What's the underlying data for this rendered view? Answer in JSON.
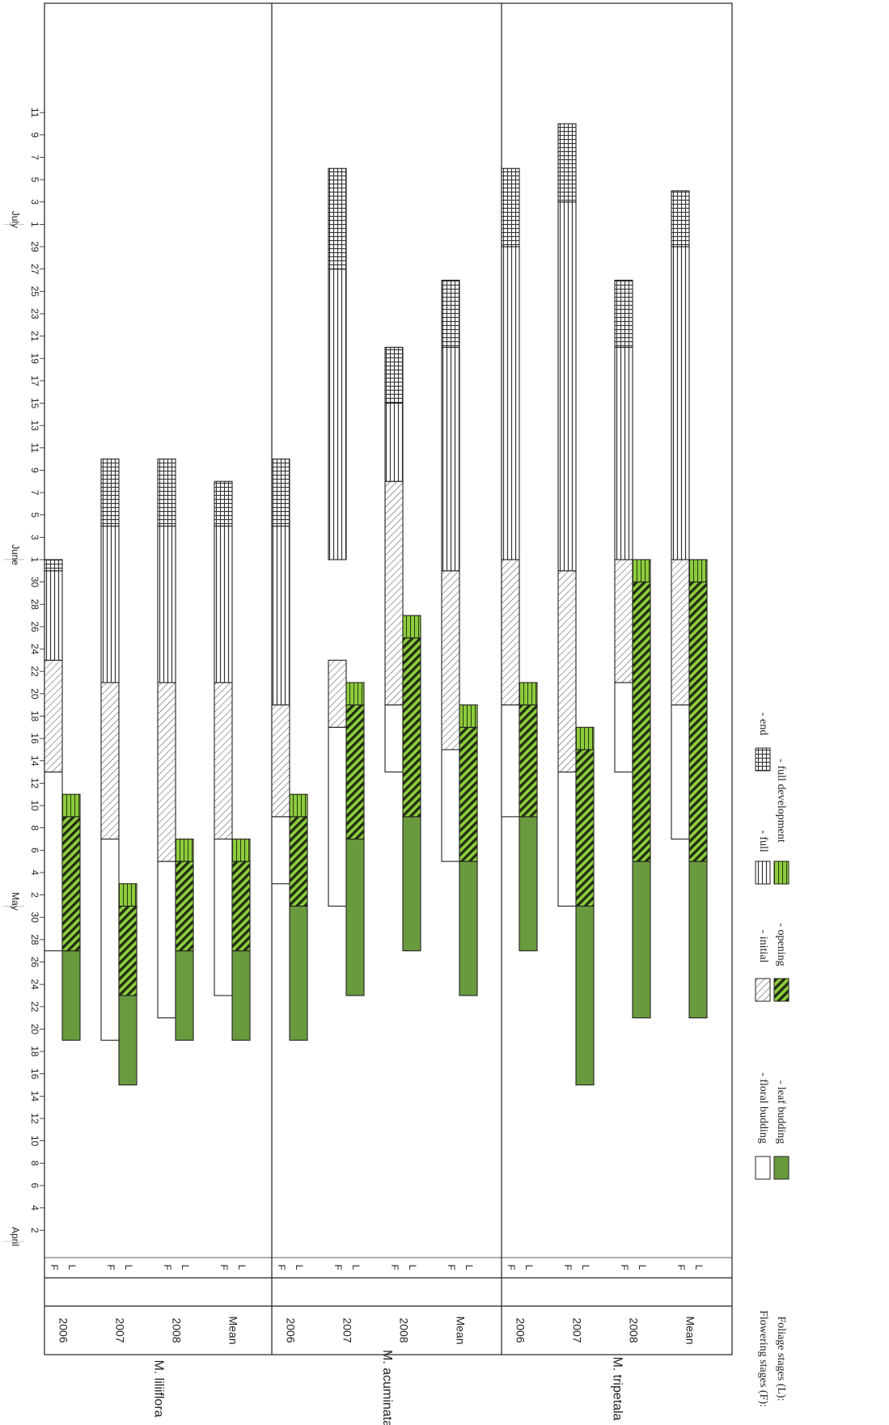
{
  "chart_data": {
    "type": "gantt",
    "orientation": "rotated-90-cw",
    "date_axis": {
      "months": [
        {
          "name": "April",
          "start": "04-01"
        },
        {
          "name": "May",
          "start": "05-01"
        },
        {
          "name": "June",
          "start": "06-01"
        },
        {
          "name": "July",
          "start": "07-01"
        }
      ],
      "ticks": [
        {
          "date": "04-02",
          "label": "2"
        },
        {
          "date": "04-04",
          "label": "4"
        },
        {
          "date": "04-06",
          "label": "6"
        },
        {
          "date": "04-08",
          "label": "8"
        },
        {
          "date": "04-10",
          "label": "10"
        },
        {
          "date": "04-12",
          "label": "12"
        },
        {
          "date": "04-14",
          "label": "14"
        },
        {
          "date": "04-16",
          "label": "16"
        },
        {
          "date": "04-18",
          "label": "18"
        },
        {
          "date": "04-20",
          "label": "20"
        },
        {
          "date": "04-22",
          "label": "22"
        },
        {
          "date": "04-24",
          "label": "24"
        },
        {
          "date": "04-26",
          "label": "26"
        },
        {
          "date": "04-28",
          "label": "28"
        },
        {
          "date": "04-30",
          "label": "30"
        },
        {
          "date": "05-02",
          "label": "2"
        },
        {
          "date": "05-04",
          "label": "4"
        },
        {
          "date": "05-06",
          "label": "6"
        },
        {
          "date": "05-08",
          "label": "8"
        },
        {
          "date": "05-10",
          "label": "10"
        },
        {
          "date": "05-12",
          "label": "12"
        },
        {
          "date": "05-14",
          "label": "14"
        },
        {
          "date": "05-16",
          "label": "16"
        },
        {
          "date": "05-18",
          "label": "18"
        },
        {
          "date": "05-20",
          "label": "20"
        },
        {
          "date": "05-22",
          "label": "22"
        },
        {
          "date": "05-24",
          "label": "24"
        },
        {
          "date": "05-26",
          "label": "26"
        },
        {
          "date": "05-28",
          "label": "28"
        },
        {
          "date": "05-30",
          "label": "30"
        },
        {
          "date": "06-01",
          "label": "1"
        },
        {
          "date": "06-03",
          "label": "3"
        },
        {
          "date": "06-05",
          "label": "5"
        },
        {
          "date": "06-07",
          "label": "7"
        },
        {
          "date": "06-09",
          "label": "9"
        },
        {
          "date": "06-11",
          "label": "11"
        },
        {
          "date": "06-13",
          "label": "13"
        },
        {
          "date": "06-15",
          "label": "15"
        },
        {
          "date": "06-17",
          "label": "17"
        },
        {
          "date": "06-19",
          "label": "19"
        },
        {
          "date": "06-21",
          "label": "21"
        },
        {
          "date": "06-23",
          "label": "23"
        },
        {
          "date": "06-25",
          "label": "25"
        },
        {
          "date": "06-27",
          "label": "27"
        },
        {
          "date": "06-29",
          "label": "29"
        },
        {
          "date": "07-01",
          "label": "1"
        },
        {
          "date": "07-03",
          "label": "3"
        },
        {
          "date": "07-05",
          "label": "5"
        },
        {
          "date": "07-07",
          "label": "7"
        },
        {
          "date": "07-09",
          "label": "9"
        },
        {
          "date": "07-11",
          "label": "11"
        }
      ]
    },
    "groups": [
      {
        "species": "M. liliiflora",
        "years": [
          {
            "year": "2006",
            "F": {
              "floral_budding": [
                "04-27",
                "05-13"
              ],
              "initial": [
                "05-13",
                "05-23"
              ],
              "full": [
                "05-23",
                "05-31"
              ],
              "end": [
                "05-31",
                "06-01"
              ]
            },
            "L": {
              "leaf_budding": [
                "04-19",
                "04-27"
              ],
              "opening": [
                "04-27",
                "05-09"
              ],
              "full_development": [
                "05-09",
                "05-11"
              ]
            }
          },
          {
            "year": "2007",
            "F": {
              "floral_budding": [
                "04-19",
                "05-07"
              ],
              "initial": [
                "05-07",
                "05-21"
              ],
              "full": [
                "05-21",
                "06-04"
              ],
              "end": [
                "06-04",
                "06-10"
              ]
            },
            "L": {
              "leaf_budding": [
                "04-15",
                "04-23"
              ],
              "opening": [
                "04-23",
                "05-01"
              ],
              "full_development": [
                "05-01",
                "05-03"
              ]
            }
          },
          {
            "year": "2008",
            "F": {
              "floral_budding": [
                "04-21",
                "05-05"
              ],
              "initial": [
                "05-05",
                "05-21"
              ],
              "full": [
                "05-21",
                "06-04"
              ],
              "end": [
                "06-04",
                "06-10"
              ]
            },
            "L": {
              "leaf_budding": [
                "04-19",
                "04-27"
              ],
              "opening": [
                "04-27",
                "05-05"
              ],
              "full_development": [
                "05-05",
                "05-07"
              ]
            }
          },
          {
            "year": "Mean",
            "F": {
              "floral_budding": [
                "04-23",
                "05-07"
              ],
              "initial": [
                "05-07",
                "05-21"
              ],
              "full": [
                "05-21",
                "06-04"
              ],
              "end": [
                "06-04",
                "06-08"
              ]
            },
            "L": {
              "leaf_budding": [
                "04-19",
                "04-27"
              ],
              "opening": [
                "04-27",
                "05-05"
              ],
              "full_development": [
                "05-05",
                "05-07"
              ]
            }
          }
        ]
      },
      {
        "species": "M. acuminata",
        "years": [
          {
            "year": "2006",
            "F": {
              "floral_budding": [
                "05-03",
                "05-09"
              ],
              "initial": [
                "05-09",
                "05-19"
              ],
              "full": [
                "05-19",
                "06-04"
              ],
              "end": [
                "06-04",
                "06-10"
              ]
            },
            "L": {
              "leaf_budding": [
                "04-19",
                "05-01"
              ],
              "opening": [
                "05-01",
                "05-09"
              ],
              "full_development": [
                "05-09",
                "05-11"
              ]
            }
          },
          {
            "year": "2007",
            "F": {
              "floral_budding": [
                "05-01",
                "05-17"
              ],
              "initial": [
                "05-17",
                "05-23"
              ],
              "full": [
                "06-01",
                "06-27"
              ],
              "end": [
                "06-27",
                "07-06"
              ]
            },
            "L": {
              "leaf_budding": [
                "04-23",
                "05-07"
              ],
              "opening": [
                "05-07",
                "05-19"
              ],
              "full_development": [
                "05-19",
                "05-21"
              ]
            }
          },
          {
            "year": "2008",
            "F": {
              "floral_budding": [
                "05-13",
                "05-19"
              ],
              "initial": [
                "05-19",
                "06-08"
              ],
              "full": [
                "06-08",
                "06-15"
              ],
              "end": [
                "06-15",
                "06-20"
              ]
            },
            "L": {
              "leaf_budding": [
                "04-27",
                "05-09"
              ],
              "opening": [
                "05-09",
                "05-25"
              ],
              "full_development": [
                "05-25",
                "05-27"
              ]
            }
          },
          {
            "year": "Mean",
            "F": {
              "floral_budding": [
                "05-05",
                "05-15"
              ],
              "initial": [
                "05-15",
                "05-31"
              ],
              "full": [
                "05-31",
                "06-20"
              ],
              "end": [
                "06-20",
                "06-26"
              ]
            },
            "L": {
              "leaf_budding": [
                "04-23",
                "05-05"
              ],
              "opening": [
                "05-05",
                "05-17"
              ],
              "full_development": [
                "05-17",
                "05-19"
              ]
            }
          }
        ]
      },
      {
        "species": "M. tripetala",
        "years": [
          {
            "year": "2006",
            "F": {
              "floral_budding": [
                "05-09",
                "05-19"
              ],
              "initial": [
                "05-19",
                "06-01"
              ],
              "full": [
                "06-01",
                "06-29"
              ],
              "end": [
                "06-29",
                "07-06"
              ]
            },
            "L": {
              "leaf_budding": [
                "04-27",
                "05-09"
              ],
              "opening": [
                "05-09",
                "05-19"
              ],
              "full_development": [
                "05-19",
                "05-21"
              ]
            }
          },
          {
            "year": "2007",
            "F": {
              "floral_budding": [
                "05-01",
                "05-13"
              ],
              "initial": [
                "05-13",
                "05-31"
              ],
              "full": [
                "05-31",
                "07-03"
              ],
              "end": [
                "07-03",
                "07-10"
              ]
            },
            "L": {
              "leaf_budding": [
                "04-15",
                "05-01"
              ],
              "opening": [
                "05-01",
                "05-15"
              ],
              "full_development": [
                "05-15",
                "05-17"
              ]
            }
          },
          {
            "year": "2008",
            "F": {
              "floral_budding": [
                "05-13",
                "05-21"
              ],
              "initial": [
                "05-21",
                "06-01"
              ],
              "full": [
                "06-01",
                "06-20"
              ],
              "end": [
                "06-20",
                "06-26"
              ]
            },
            "L": {
              "leaf_budding": [
                "04-21",
                "05-05"
              ],
              "opening": [
                "05-05",
                "05-30"
              ],
              "full_development": [
                "05-30",
                "06-01"
              ]
            }
          },
          {
            "year": "Mean",
            "F": {
              "floral_budding": [
                "05-07",
                "05-19"
              ],
              "initial": [
                "05-19",
                "06-01"
              ],
              "full": [
                "06-01",
                "06-29"
              ],
              "end": [
                "06-29",
                "07-04"
              ]
            },
            "L": {
              "leaf_budding": [
                "04-21",
                "05-05"
              ],
              "opening": [
                "05-05",
                "05-30"
              ],
              "full_development": [
                "05-30",
                "06-01"
              ]
            }
          }
        ]
      }
    ],
    "legend": {
      "flowering_label": "Flowering stages (F):",
      "foliage_label": "Foliage stages (L):",
      "floral_budding": "- floral budding",
      "leaf_budding": "- leaf budding",
      "initial": "- initial",
      "opening": "- opening",
      "full": "- full",
      "full_development": "- full development",
      "end": "- end"
    },
    "colors": {
      "leaf_green": "#6a9a3e",
      "light_green": "#8ccc3c",
      "line": "#222222"
    }
  }
}
